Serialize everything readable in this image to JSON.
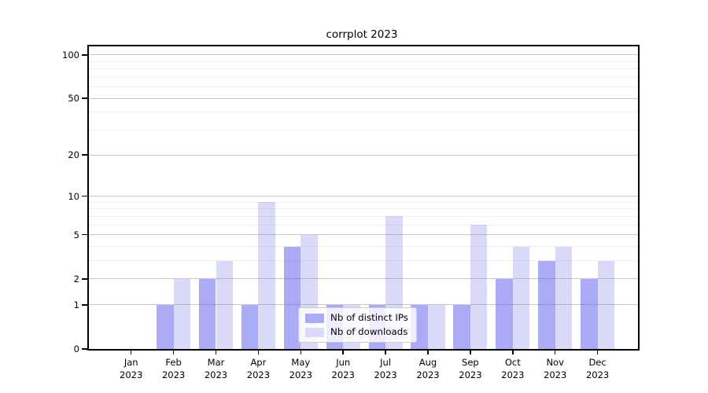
{
  "chart_data": {
    "type": "bar",
    "title": "corrplot 2023",
    "categories": [
      "Jan",
      "Feb",
      "Mar",
      "Apr",
      "May",
      "Jun",
      "Jul",
      "Aug",
      "Sep",
      "Oct",
      "Nov",
      "Dec"
    ],
    "category_year": "2023",
    "series": [
      {
        "name": "Nb of distinct IPs",
        "color": "#aaaaf7",
        "values": [
          0,
          1,
          2,
          1,
          4,
          1,
          1,
          1,
          1,
          2,
          3,
          2
        ]
      },
      {
        "name": "Nb of downloads",
        "color": "#dadaf8",
        "values": [
          0,
          2,
          3,
          9,
          5,
          1,
          7,
          1,
          6,
          4,
          4,
          3
        ]
      }
    ],
    "yscale": "log10(value+1)",
    "yticks": [
      0,
      1,
      2,
      5,
      10,
      20,
      50,
      100
    ],
    "major_gridlines": [
      1,
      2,
      5,
      10,
      20,
      50,
      100
    ],
    "minor_gridlines": [
      3,
      4,
      6,
      7,
      8,
      9,
      30,
      40,
      60,
      70,
      80,
      90
    ],
    "ylim": [
      0,
      114
    ],
    "grid": true,
    "legend_position": "lower center",
    "colors": {
      "axis": "#000000",
      "background": "#ffffff",
      "text": "#000000"
    }
  }
}
